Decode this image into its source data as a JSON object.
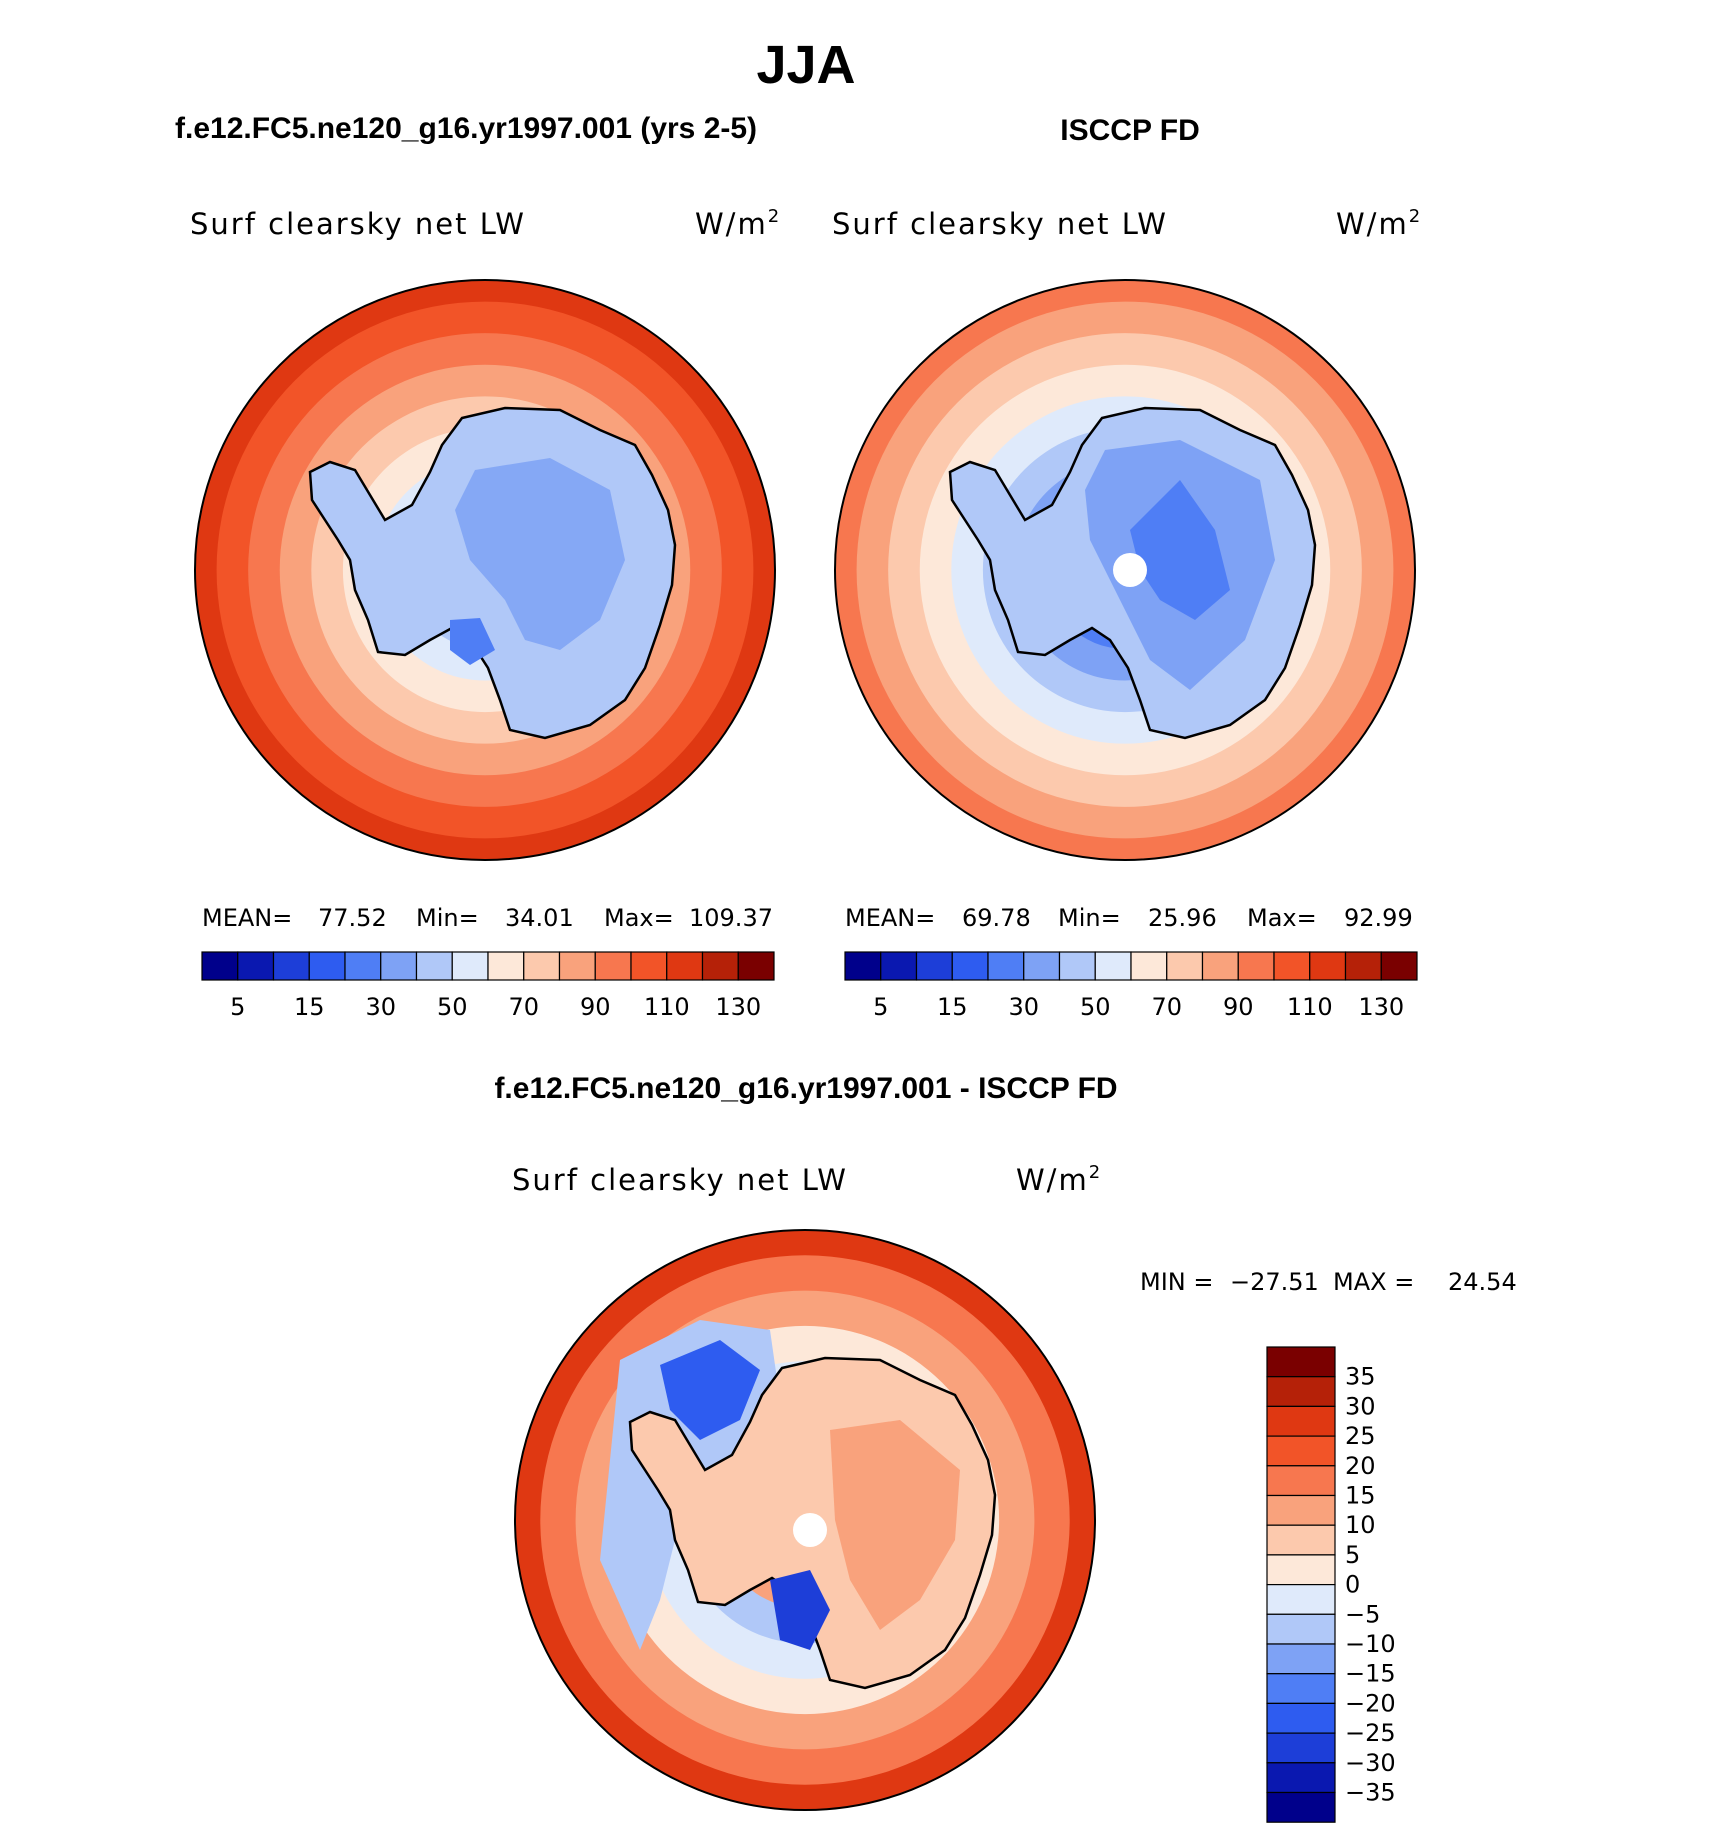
{
  "chart_data": {
    "type": "heatmap",
    "title": "JJA",
    "palette": [
      "#00008b",
      "#0a18b0",
      "#1d3ed8",
      "#2e5cf0",
      "#4f7ef5",
      "#7ea2f5",
      "#b0c8f8",
      "#dfeafb",
      "#fde8d9",
      "#fcc9ad",
      "#f9a27c",
      "#f7774f",
      "#f25428",
      "#df3812",
      "#b52108",
      "#7a0000"
    ],
    "panels": [
      {
        "id": "model",
        "case": "f.e12.FC5.ne120_g16.yr1997.001 (yrs 2-5)",
        "variable": "Surf clearsky net LW",
        "units": "W/m",
        "units_exp": "2",
        "mean_label": "MEAN=",
        "mean": "77.52",
        "min_label": "Min=",
        "min": "34.01",
        "max_label": "Max=",
        "max": "109.37",
        "colorbar_ticks": [
          "5",
          "15",
          "30",
          "50",
          "70",
          "90",
          "110",
          "130"
        ],
        "rings": [
          {
            "value": 110,
            "level": 13
          },
          {
            "value": 100,
            "level": 12
          },
          {
            "value": 90,
            "level": 11
          },
          {
            "value": 80,
            "level": 10
          },
          {
            "value": 70,
            "level": 9
          },
          {
            "value": 60,
            "level": 8
          },
          {
            "value": 50,
            "level": 7
          },
          {
            "value": 40,
            "level": 6
          }
        ],
        "pole_hole": false
      },
      {
        "id": "obs",
        "case": "ISCCP FD",
        "variable": "Surf clearsky net LW",
        "units": "W/m",
        "units_exp": "2",
        "mean_label": "MEAN=",
        "mean": "69.78",
        "min_label": "Min=",
        "min": "25.96",
        "max_label": "Max=",
        "max": "92.99",
        "colorbar_ticks": [
          "5",
          "15",
          "30",
          "50",
          "70",
          "90",
          "110",
          "130"
        ],
        "rings": [
          {
            "value": 90,
            "level": 11
          },
          {
            "value": 80,
            "level": 10
          },
          {
            "value": 70,
            "level": 9
          },
          {
            "value": 60,
            "level": 8
          },
          {
            "value": 50,
            "level": 7
          },
          {
            "value": 40,
            "level": 6
          },
          {
            "value": 30,
            "level": 5
          },
          {
            "value": 20,
            "level": 4
          }
        ],
        "pole_hole": true
      }
    ],
    "difference": {
      "title": "f.e12.FC5.ne120_g16.yr1997.001 - ISCCP FD",
      "variable": "Surf clearsky net LW",
      "units": "W/m",
      "units_exp": "2",
      "min_label": "MIN =",
      "min": "−27.51",
      "max_label": "MAX =",
      "max": "24.54",
      "colorbar_ticks": [
        "35",
        "30",
        "25",
        "20",
        "15",
        "10",
        "5",
        "0",
        "−5",
        "−10",
        "−15",
        "−20",
        "−25",
        "−30",
        "−35"
      ],
      "rings": [
        {
          "value": 20,
          "level": 13
        },
        {
          "value": 12,
          "level": 11
        },
        {
          "value": 5,
          "level": 10
        },
        {
          "value": 0,
          "level": 8
        },
        {
          "value": -5,
          "level": 7
        },
        {
          "value": -10,
          "level": 6
        },
        {
          "value": 8,
          "level": 10
        }
      ],
      "pole_hole": true
    }
  }
}
